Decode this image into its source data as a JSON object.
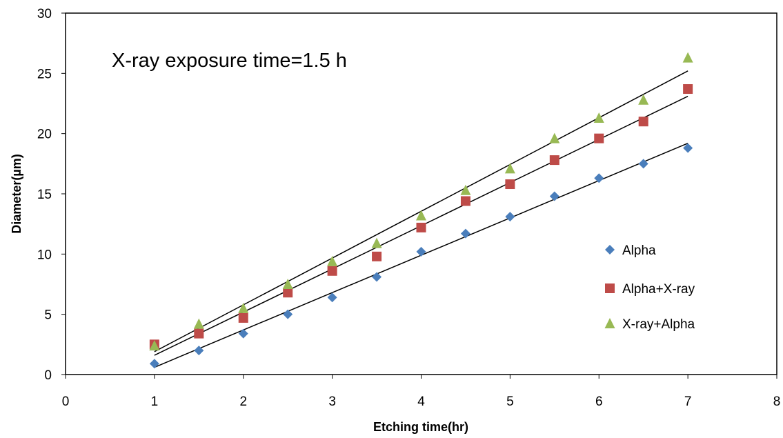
{
  "chart_data": {
    "type": "scatter",
    "title": "",
    "annotation": "X-ray exposure time=1.5 h",
    "xlabel": "Etching time(hr)",
    "ylabel": "Diameter(µm)",
    "xlim": [
      0,
      8
    ],
    "ylim": [
      0,
      30
    ],
    "xticks": [
      0,
      1,
      2,
      3,
      4,
      5,
      6,
      7,
      8
    ],
    "yticks": [
      0,
      5,
      10,
      15,
      20,
      25,
      30
    ],
    "grid": false,
    "legend_position": "right",
    "series": [
      {
        "name": "Alpha",
        "marker": "diamond",
        "color": "#4a7ebb",
        "x": [
          1,
          1.5,
          2,
          2.5,
          3,
          3.5,
          4,
          4.5,
          5,
          5.5,
          6,
          6.5,
          7
        ],
        "y": [
          0.9,
          2.0,
          3.4,
          5.0,
          6.4,
          8.1,
          10.2,
          11.7,
          13.1,
          14.8,
          16.3,
          17.5,
          18.8
        ],
        "trendline": {
          "x": [
            1,
            7
          ],
          "y": [
            0.6,
            19.2
          ]
        }
      },
      {
        "name": "Alpha+X-ray",
        "marker": "square",
        "color": "#be4b48",
        "x": [
          1,
          1.5,
          2,
          2.5,
          3,
          3.5,
          4,
          4.5,
          5,
          5.5,
          6,
          6.5,
          7
        ],
        "y": [
          2.5,
          3.4,
          4.7,
          6.8,
          8.6,
          9.8,
          12.2,
          14.4,
          15.8,
          17.8,
          19.6,
          21.0,
          23.7
        ],
        "trendline": {
          "x": [
            1,
            7
          ],
          "y": [
            1.6,
            23.1
          ]
        }
      },
      {
        "name": "X-ray+Alpha",
        "marker": "triangle",
        "color": "#98b954",
        "x": [
          1,
          1.5,
          2,
          2.5,
          3,
          3.5,
          4,
          4.5,
          5,
          5.5,
          6,
          6.5,
          7
        ],
        "y": [
          2.4,
          4.2,
          5.5,
          7.5,
          9.4,
          10.9,
          13.2,
          15.3,
          17.1,
          19.6,
          21.3,
          22.8,
          26.3
        ],
        "trendline": {
          "x": [
            1,
            7
          ],
          "y": [
            1.9,
            25.2
          ]
        }
      }
    ]
  }
}
